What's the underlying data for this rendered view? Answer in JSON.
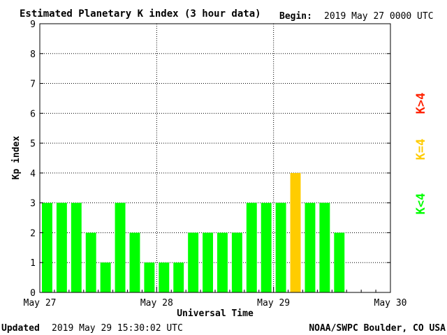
{
  "header": {
    "title": "Estimated Planetary K index (3 hour data)",
    "begin_label": "Begin:",
    "begin_value": "2019 May 27 0000 UTC"
  },
  "footer": {
    "updated_label": "Updated",
    "updated_value": "2019 May 29 15:30:02 UTC",
    "credit": "NOAA/SWPC Boulder, CO USA"
  },
  "legend": {
    "below": "K<4",
    "equal": "K=4",
    "above": "K>4"
  },
  "colors": {
    "below": "#00ff00",
    "equal": "#ffcc00",
    "above": "#ff2200",
    "grid": "#000000",
    "text": "#000000"
  },
  "chart_data": {
    "type": "bar",
    "ylabel": "Kp index",
    "xlabel": "Universal Time",
    "ylim": [
      0,
      9
    ],
    "yticks": [
      "0",
      "1",
      "2",
      "3",
      "4",
      "5",
      "6",
      "7",
      "8",
      "9"
    ],
    "x_day_labels": [
      "May 27",
      "May 28",
      "May 29",
      "May 30"
    ],
    "slots_per_day": 8,
    "total_slots": 24,
    "grid": "dotted at each day boundary and each integer Kp level",
    "values": [
      3,
      3,
      3,
      2,
      1,
      3,
      2,
      1,
      1,
      1,
      2,
      2,
      2,
      2,
      3,
      3,
      3,
      4,
      3,
      3,
      2
    ]
  }
}
